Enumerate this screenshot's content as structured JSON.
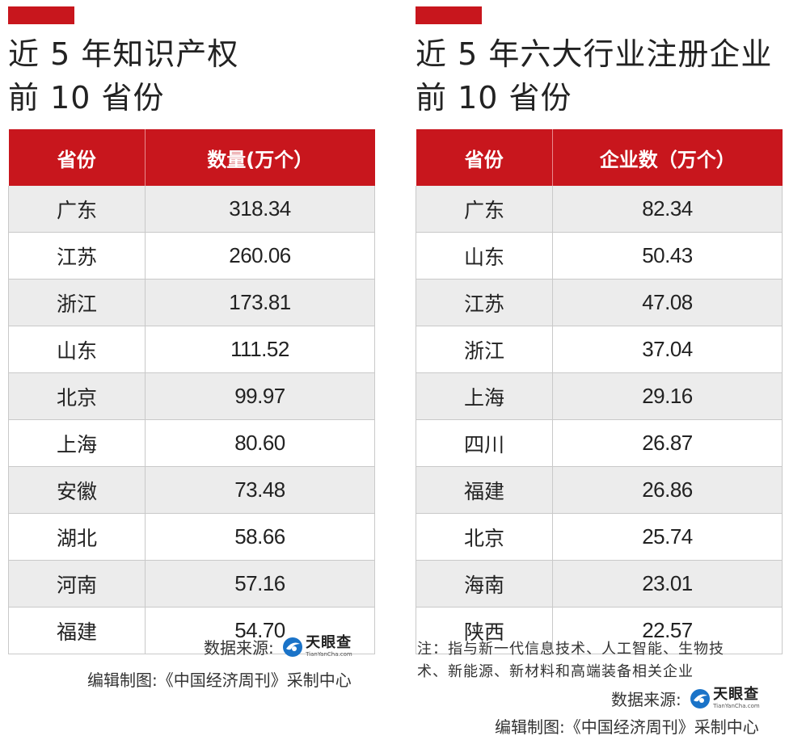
{
  "left": {
    "title_line1": "近 5 年知识产权",
    "title_line2": "前 10 省份",
    "header_province": "省份",
    "header_value": "数量(万个）",
    "rows": [
      {
        "province": "广东",
        "value": "318.34"
      },
      {
        "province": "江苏",
        "value": "260.06"
      },
      {
        "province": "浙江",
        "value": "173.81"
      },
      {
        "province": "山东",
        "value": "111.52"
      },
      {
        "province": "北京",
        "value": "99.97"
      },
      {
        "province": "上海",
        "value": "80.60"
      },
      {
        "province": "安徽",
        "value": "73.48"
      },
      {
        "province": "湖北",
        "value": "58.66"
      },
      {
        "province": "河南",
        "value": "57.16"
      },
      {
        "province": "福建",
        "value": "54.70"
      }
    ],
    "source_label": "数据来源:",
    "credit": "编辑制图:《中国经济周刊》采制中心"
  },
  "right": {
    "title_line1": "近 5 年六大行业注册企业",
    "title_line2": "前 10 省份",
    "header_province": "省份",
    "header_value": "企业数（万个）",
    "rows": [
      {
        "province": "广东",
        "value": "82.34"
      },
      {
        "province": "山东",
        "value": "50.43"
      },
      {
        "province": "江苏",
        "value": "47.08"
      },
      {
        "province": "浙江",
        "value": "37.04"
      },
      {
        "province": "上海",
        "value": "29.16"
      },
      {
        "province": "四川",
        "value": "26.87"
      },
      {
        "province": "福建",
        "value": "26.86"
      },
      {
        "province": "北京",
        "value": "25.74"
      },
      {
        "province": "海南",
        "value": "23.01"
      },
      {
        "province": "陕西",
        "value": "22.57"
      }
    ],
    "note_line1": "注：指与新一代信息技术、人工智能、生物技",
    "note_line2": "术、新能源、新材料和高端装备相关企业",
    "source_label": "数据来源:",
    "credit": "编辑制图:《中国经济周刊》采制中心"
  },
  "logo": {
    "brand_cn": "天眼查",
    "brand_en": "TianYanCha.com",
    "icon": "tianyancha-logo-icon"
  },
  "colors": {
    "accent": "#c8161d",
    "row_alt": "#ececec",
    "logo_blue": "#1a73c8"
  }
}
